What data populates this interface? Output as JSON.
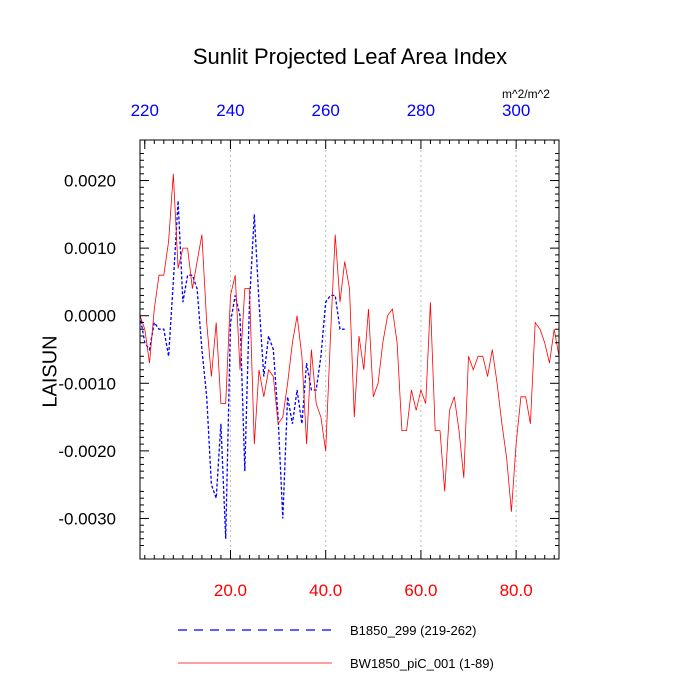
{
  "chart_data": {
    "type": "line",
    "title": "Sunlit Projected Leaf Area Index",
    "ylabel": "LAISUN",
    "top_axis_units": "m^2/m^2",
    "xlim": [
      1,
      89
    ],
    "ylim": [
      -0.0036,
      0.0026
    ],
    "bottom_ticks": [
      {
        "value": 20,
        "label": "20.0"
      },
      {
        "value": 40,
        "label": "40.0"
      },
      {
        "value": 60,
        "label": "60.0"
      },
      {
        "value": 80,
        "label": "80.0"
      }
    ],
    "top_ticks": [
      {
        "value": 2,
        "label": "220"
      },
      {
        "value": 20,
        "label": "240"
      },
      {
        "value": 40,
        "label": "260"
      },
      {
        "value": 60,
        "label": "280"
      },
      {
        "value": 80,
        "label": "300"
      }
    ],
    "y_ticks": [
      {
        "value": 0.002,
        "label": "0.0020"
      },
      {
        "value": 0.001,
        "label": "0.0010"
      },
      {
        "value": 0.0,
        "label": "0.0000"
      },
      {
        "value": -0.001,
        "label": "-0.0010"
      },
      {
        "value": -0.002,
        "label": "-0.0020"
      },
      {
        "value": -0.003,
        "label": "-0.0030"
      }
    ],
    "grid": "vertical dotted at bottom ticks",
    "legend_position": "bottom",
    "series": [
      {
        "name": "B1850_299 (219-262)",
        "color": "#0000ff",
        "dash": "dashed",
        "x": [
          1,
          2,
          3,
          4,
          5,
          6,
          7,
          8,
          9,
          10,
          11,
          12,
          13,
          14,
          15,
          16,
          17,
          18,
          19,
          20,
          21,
          22,
          23,
          24,
          25,
          26,
          27,
          28,
          29,
          30,
          31,
          32,
          33,
          34,
          35,
          36,
          37,
          38,
          39,
          40,
          41,
          42,
          43,
          44
        ],
        "y": [
          0.0,
          -0.0004,
          -0.0005,
          -0.0001,
          -0.0002,
          -0.0002,
          -0.0006,
          0.0005,
          0.0017,
          0.0002,
          0.0006,
          0.0006,
          0.0004,
          -0.0005,
          -0.0012,
          -0.0025,
          -0.0027,
          -0.0016,
          -0.0033,
          -0.0001,
          0.0003,
          0.0,
          -0.0023,
          0.0002,
          0.0015,
          0.0002,
          -0.0009,
          -0.0003,
          -0.0005,
          -0.0015,
          -0.003,
          -0.0012,
          -0.0016,
          -0.0011,
          -0.0016,
          -0.0007,
          -0.0011,
          -0.0011,
          -0.0006,
          0.0002,
          0.0003,
          0.0003,
          -0.0002,
          -0.0002
        ]
      },
      {
        "name": "BW1850_piC_001 (1-89)",
        "color": "#ff0000",
        "dash": "solid",
        "x": [
          1,
          2,
          3,
          4,
          5,
          6,
          7,
          8,
          9,
          10,
          11,
          12,
          13,
          14,
          15,
          16,
          17,
          18,
          19,
          20,
          21,
          22,
          23,
          24,
          25,
          26,
          27,
          28,
          29,
          30,
          31,
          32,
          33,
          34,
          35,
          36,
          37,
          38,
          39,
          40,
          41,
          42,
          43,
          44,
          45,
          46,
          47,
          48,
          49,
          50,
          51,
          52,
          53,
          54,
          55,
          56,
          57,
          58,
          59,
          60,
          61,
          62,
          63,
          64,
          65,
          66,
          67,
          68,
          69,
          70,
          71,
          72,
          73,
          74,
          75,
          76,
          77,
          78,
          79,
          80,
          81,
          82,
          83,
          84,
          85,
          86,
          87,
          88,
          89
        ],
        "y": [
          0.0,
          -0.0002,
          -0.0007,
          0.0001,
          0.0006,
          0.0006,
          0.0011,
          0.0021,
          0.0007,
          0.001,
          0.001,
          0.0004,
          0.0008,
          0.0012,
          -0.0001,
          -0.0009,
          -0.0001,
          -0.0013,
          -0.0013,
          0.0003,
          0.0006,
          -0.0008,
          0.0004,
          0.0004,
          -0.0019,
          -0.0008,
          -0.0012,
          -0.0008,
          -0.0009,
          -0.0016,
          -0.0015,
          -0.001,
          -0.0004,
          0.0,
          -0.0006,
          -0.0019,
          -0.0005,
          -0.0013,
          -0.0015,
          -0.002,
          -0.0003,
          0.0012,
          0.0002,
          0.0008,
          0.0004,
          -0.0015,
          -0.0003,
          -0.0008,
          0.0001,
          -0.0012,
          -0.001,
          -0.0004,
          0.0,
          0.0001,
          -0.0004,
          -0.0017,
          -0.0017,
          -0.0011,
          -0.0014,
          -0.0011,
          -0.0013,
          0.0002,
          -0.0017,
          -0.0017,
          -0.0026,
          -0.0014,
          -0.0012,
          -0.0017,
          -0.0024,
          -0.0006,
          -0.0008,
          -0.0006,
          -0.0006,
          -0.0009,
          -0.0005,
          -0.001,
          -0.0016,
          -0.0021,
          -0.0029,
          -0.0019,
          -0.0012,
          -0.0012,
          -0.0016,
          -0.0001,
          -0.0002,
          -0.0004,
          -0.0007,
          -0.0002,
          -0.0006
        ]
      }
    ]
  }
}
